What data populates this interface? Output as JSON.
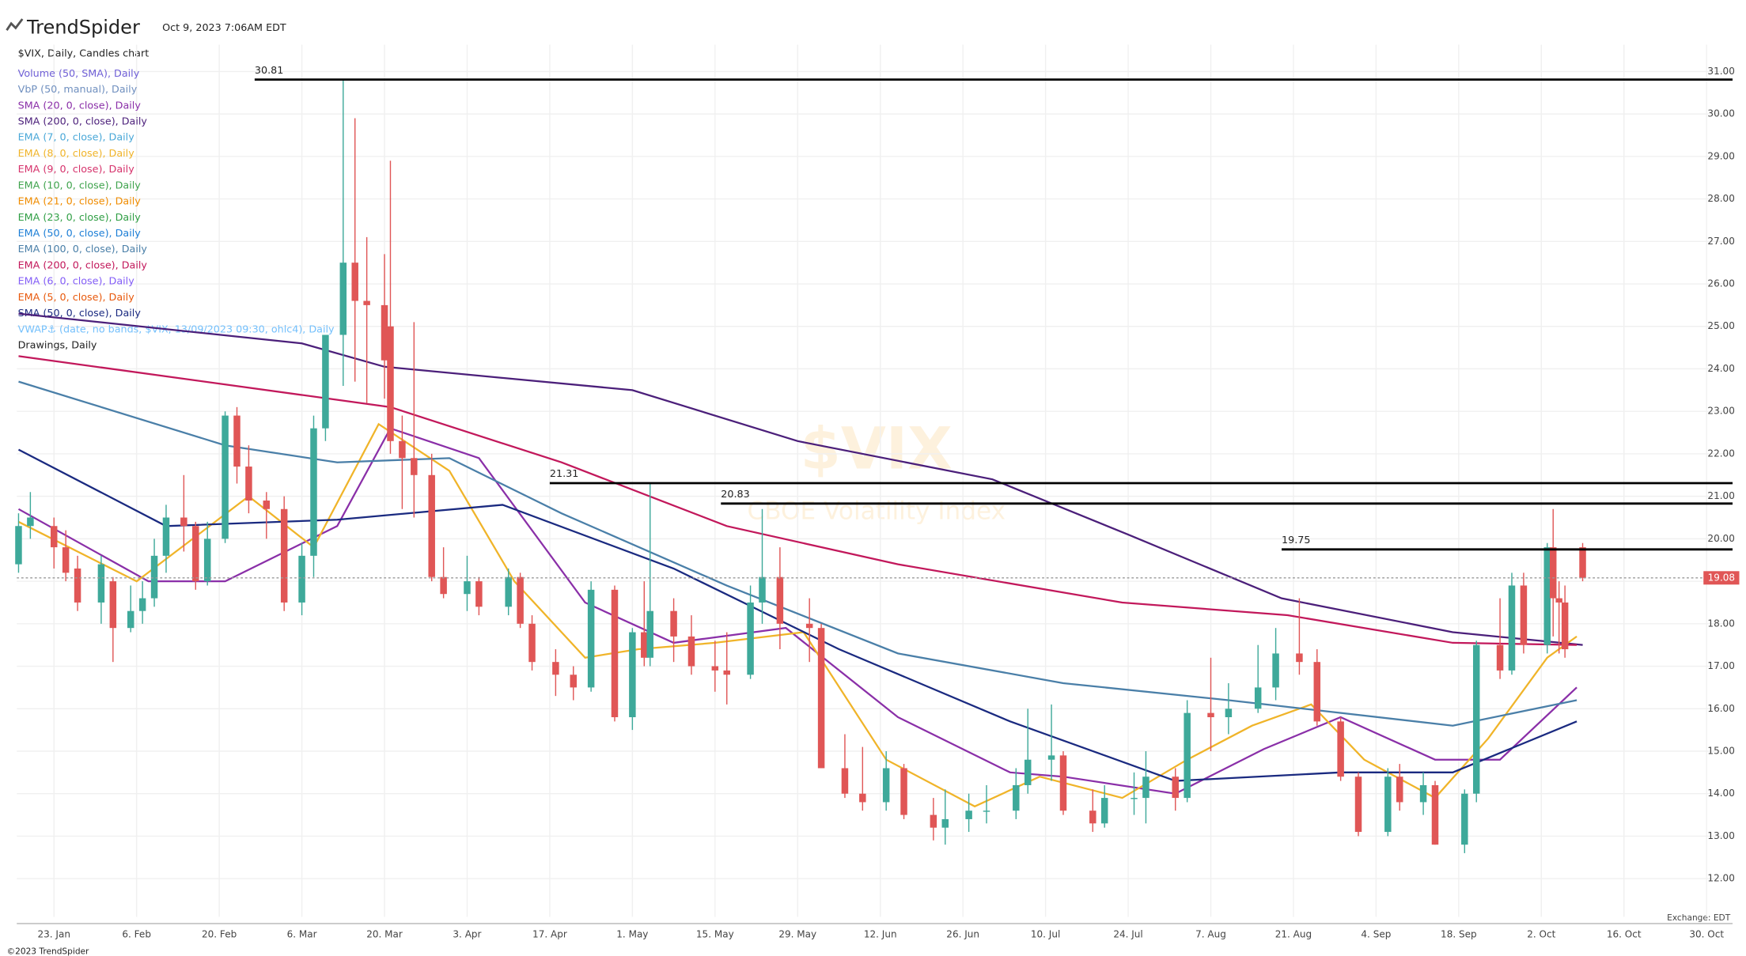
{
  "chart_data": {
    "type": "candlestick",
    "brand": "TrendSpider",
    "timestamp": "Oct 9, 2023 7:06AM EDT",
    "title": "$VIX, Daily, Candles chart",
    "watermark": "$VIX",
    "subtitle": "CBOE Volatility Index",
    "exchange_note": "Exchange: EDT",
    "copyright": "©2023 TrendSpider",
    "drawings_label": "Drawings, Daily",
    "up_color": "#3ea99a",
    "down_color": "#e05656",
    "xlim": [
      16.7,
      307.4
    ],
    "ylim": [
      11.1,
      31.63
    ],
    "xticks": [
      {
        "value": 23,
        "label": "23. Jan"
      },
      {
        "value": 37,
        "label": "6. Feb"
      },
      {
        "value": 51,
        "label": "20. Feb"
      },
      {
        "value": 65,
        "label": "6. Mar"
      },
      {
        "value": 79,
        "label": "20. Mar"
      },
      {
        "value": 93,
        "label": "3. Apr"
      },
      {
        "value": 107,
        "label": "17. Apr"
      },
      {
        "value": 121,
        "label": "1. May"
      },
      {
        "value": 135,
        "label": "15. May"
      },
      {
        "value": 149,
        "label": "29. May"
      },
      {
        "value": 163,
        "label": "12. Jun"
      },
      {
        "value": 177,
        "label": "26. Jun"
      },
      {
        "value": 191,
        "label": "10. Jul"
      },
      {
        "value": 205,
        "label": "24. Jul"
      },
      {
        "value": 219,
        "label": "7. Aug"
      },
      {
        "value": 233,
        "label": "21. Aug"
      },
      {
        "value": 247,
        "label": "4. Sep"
      },
      {
        "value": 261,
        "label": "18. Sep"
      },
      {
        "value": 275,
        "label": "2. Oct"
      },
      {
        "value": 289,
        "label": "16. Oct"
      },
      {
        "value": 303,
        "label": "30. Oct"
      }
    ],
    "yticks": [
      {
        "value": 12,
        "label": "12.00"
      },
      {
        "value": 13,
        "label": "13.00"
      },
      {
        "value": 14,
        "label": "14.00"
      },
      {
        "value": 15,
        "label": "15.00"
      },
      {
        "value": 16,
        "label": "16.00"
      },
      {
        "value": 17,
        "label": "17.00"
      },
      {
        "value": 18,
        "label": "18.00"
      },
      {
        "value": 19,
        "label": "19.00"
      },
      {
        "value": 20,
        "label": "20.00"
      },
      {
        "value": 21,
        "label": "21.00"
      },
      {
        "value": 22,
        "label": "22.00"
      },
      {
        "value": 23,
        "label": "23.00"
      },
      {
        "value": 24,
        "label": "24.00"
      },
      {
        "value": 25,
        "label": "25.00"
      },
      {
        "value": 26,
        "label": "26.00"
      },
      {
        "value": 27,
        "label": "27.00"
      },
      {
        "value": 28,
        "label": "28.00"
      },
      {
        "value": 29,
        "label": "29.00"
      },
      {
        "value": 30,
        "label": "30.00"
      },
      {
        "value": 31,
        "label": "31.00"
      }
    ],
    "grid": true,
    "x": [
      17,
      19,
      23,
      25,
      27,
      31,
      33,
      36,
      38,
      40,
      42,
      45,
      47,
      49,
      52,
      54,
      56,
      59,
      62,
      65,
      67,
      69,
      72,
      74,
      76,
      79,
      80,
      82,
      84,
      87,
      89,
      93,
      95,
      100,
      102,
      104,
      108,
      111,
      114,
      118,
      121,
      123,
      124,
      128,
      131,
      135,
      137,
      141,
      143,
      146,
      151,
      153,
      157,
      160,
      164,
      167,
      172,
      174,
      178,
      181,
      186,
      188,
      192,
      194,
      199,
      201,
      206,
      208,
      213,
      215,
      219,
      222,
      227,
      230,
      234,
      237,
      241,
      244,
      249,
      251,
      255,
      257,
      262,
      264,
      268,
      270,
      272,
      276,
      277,
      278,
      279,
      282
    ],
    "open": [
      19.4,
      20.3,
      20.3,
      19.8,
      19.3,
      18.5,
      19.0,
      17.9,
      18.3,
      18.6,
      19.6,
      20.5,
      20.3,
      19.0,
      20.0,
      22.9,
      21.7,
      20.9,
      20.7,
      18.5,
      19.6,
      22.6,
      24.8,
      26.5,
      25.6,
      25.5,
      25.0,
      22.3,
      21.9,
      21.5,
      19.1,
      18.7,
      19.0,
      18.4,
      19.1,
      18.0,
      17.1,
      16.8,
      16.5,
      18.8,
      15.8,
      17.8,
      17.2,
      18.3,
      17.7,
      17.0,
      16.9,
      16.8,
      18.5,
      19.1,
      18.0,
      17.9,
      14.6,
      14.0,
      13.8,
      14.6,
      13.5,
      13.2,
      13.4,
      13.6,
      13.6,
      14.2,
      14.8,
      14.9,
      13.6,
      13.3,
      13.9,
      13.9,
      14.4,
      13.9,
      15.9,
      15.8,
      16.0,
      16.5,
      17.3,
      17.1,
      15.7,
      14.4,
      13.1,
      14.4,
      13.8,
      14.2,
      12.8,
      14.0,
      17.5,
      16.9,
      18.9,
      17.5,
      19.8,
      18.6,
      18.5,
      19.8
    ],
    "high": [
      20.6,
      21.1,
      20.5,
      20.2,
      19.6,
      19.6,
      19.1,
      18.9,
      19.0,
      20.0,
      20.8,
      21.5,
      20.4,
      20.4,
      23.0,
      23.1,
      22.2,
      21.1,
      21.0,
      19.9,
      22.9,
      24.8,
      30.8,
      29.9,
      27.1,
      26.7,
      28.9,
      22.9,
      25.1,
      22.0,
      19.8,
      19.6,
      19.1,
      19.3,
      19.2,
      18.2,
      17.4,
      17.0,
      19.0,
      18.9,
      17.9,
      19.0,
      21.3,
      18.6,
      18.2,
      17.6,
      17.8,
      18.9,
      20.7,
      19.8,
      18.6,
      18.0,
      15.4,
      15.1,
      15.0,
      14.7,
      13.9,
      14.1,
      14.0,
      14.2,
      14.6,
      16.0,
      16.1,
      15.0,
      14.1,
      14.2,
      14.5,
      15.0,
      14.6,
      16.2,
      17.2,
      16.6,
      17.5,
      17.9,
      18.6,
      17.4,
      15.8,
      14.5,
      14.6,
      14.7,
      14.5,
      14.3,
      14.1,
      17.6,
      18.6,
      19.2,
      19.2,
      19.9,
      20.7,
      19.0,
      18.9,
      19.9
    ],
    "low": [
      19.2,
      20.0,
      19.3,
      19.0,
      18.3,
      18.0,
      17.1,
      17.8,
      18.0,
      18.4,
      19.2,
      19.7,
      18.8,
      18.9,
      19.9,
      21.3,
      20.6,
      20.0,
      18.3,
      18.2,
      19.1,
      22.3,
      23.6,
      23.7,
      23.2,
      23.3,
      22.0,
      20.7,
      20.5,
      19.0,
      18.6,
      18.3,
      18.2,
      18.2,
      17.9,
      16.9,
      16.3,
      16.2,
      16.4,
      15.7,
      15.5,
      17.0,
      17.0,
      17.1,
      16.8,
      16.4,
      16.1,
      16.7,
      18.0,
      17.4,
      17.1,
      14.6,
      13.9,
      13.6,
      13.6,
      13.4,
      12.9,
      12.8,
      13.1,
      13.3,
      13.4,
      14.0,
      14.3,
      13.5,
      13.1,
      13.2,
      13.5,
      13.3,
      13.6,
      13.8,
      15.0,
      15.4,
      15.9,
      16.2,
      16.8,
      15.6,
      14.3,
      13.0,
      13.0,
      13.6,
      13.5,
      12.8,
      12.6,
      13.8,
      16.7,
      16.8,
      17.3,
      17.3,
      17.7,
      17.3,
      17.2,
      19.0
    ],
    "close": [
      20.3,
      20.5,
      19.8,
      19.2,
      18.5,
      19.4,
      17.9,
      18.3,
      18.6,
      19.6,
      20.5,
      20.3,
      19.0,
      20.0,
      22.9,
      21.7,
      20.9,
      20.7,
      18.5,
      19.6,
      22.6,
      24.8,
      26.5,
      25.6,
      25.5,
      24.2,
      22.3,
      21.9,
      21.5,
      19.1,
      18.7,
      19.0,
      18.4,
      19.1,
      18.0,
      17.1,
      16.8,
      16.5,
      18.8,
      15.8,
      17.8,
      17.2,
      18.3,
      17.7,
      17.0,
      16.9,
      16.8,
      18.5,
      19.1,
      18.0,
      17.9,
      14.6,
      14.0,
      13.8,
      14.6,
      13.5,
      13.2,
      13.4,
      13.6,
      13.6,
      14.2,
      14.8,
      14.9,
      13.6,
      13.3,
      13.9,
      13.9,
      14.4,
      13.9,
      15.9,
      15.8,
      16.0,
      16.5,
      17.3,
      17.1,
      15.7,
      14.4,
      13.1,
      14.4,
      13.8,
      14.2,
      12.8,
      14.0,
      17.5,
      16.9,
      18.9,
      17.5,
      19.8,
      18.6,
      18.5,
      17.4,
      19.08
    ],
    "last_price": 19.08,
    "levels": [
      {
        "value": 30.81,
        "x": 57
      },
      {
        "value": 21.31,
        "x": 107
      },
      {
        "value": 20.83,
        "x": 136
      },
      {
        "value": 19.75,
        "x": 231
      }
    ],
    "indicators": [
      {
        "name": "Volume (50, SMA), Daily",
        "color": "#6f5fd6"
      },
      {
        "name": "VbP (50, manual), Daily",
        "color": "#6f8fbf"
      },
      {
        "name": "SMA (20, 0, close), Daily",
        "color": "#8a2fa8",
        "x": [
          17,
          39,
          52,
          71,
          80,
          95,
          113,
          128,
          147,
          166,
          185,
          194,
          213,
          228,
          241,
          257,
          268,
          281
        ],
        "values": [
          20.7,
          19.0,
          19.0,
          20.3,
          22.6,
          21.9,
          18.5,
          17.55,
          17.9,
          15.8,
          14.5,
          14.4,
          14.0,
          15.05,
          15.8,
          14.8,
          14.8,
          16.5
        ]
      },
      {
        "name": "SMA (200, 0, close), Daily",
        "color": "#4b1f7a",
        "x": [
          17,
          65,
          79,
          121,
          149,
          182,
          205,
          231,
          260,
          282
        ],
        "values": [
          25.3,
          24.6,
          24.05,
          23.5,
          22.3,
          21.4,
          20.1,
          18.6,
          17.8,
          17.5
        ]
      },
      {
        "name": "EMA (7, 0, close), Daily",
        "color": "#4aa8d8"
      },
      {
        "name": "EMA (8, 0, close), Daily",
        "color": "#f0b429",
        "x": [
          17,
          37,
          56,
          67,
          78,
          90,
          101,
          113,
          122,
          135,
          150,
          164,
          179,
          190,
          204,
          215,
          226,
          236,
          245,
          257,
          266,
          276,
          281
        ],
        "values": [
          20.4,
          19.0,
          21.0,
          19.8,
          22.7,
          21.6,
          19.0,
          17.2,
          17.4,
          17.55,
          17.8,
          14.8,
          13.7,
          14.4,
          13.9,
          14.8,
          15.6,
          16.1,
          14.8,
          13.9,
          15.3,
          17.2,
          17.7
        ]
      },
      {
        "name": "EMA (9, 0, close), Daily",
        "color": "#d6336c"
      },
      {
        "name": "EMA (10, 0, close), Daily",
        "color": "#3fa34d"
      },
      {
        "name": "EMA (21, 0, close), Daily",
        "color": "#f08c00"
      },
      {
        "name": "EMA (23, 0, close), Daily",
        "color": "#2f9e44"
      },
      {
        "name": "EMA (50, 0, close), Daily",
        "color": "#1c7ed6"
      },
      {
        "name": "EMA (100, 0, close), Daily",
        "color": "#4a7fa8",
        "x": [
          17,
          52,
          71,
          90,
          109,
          137,
          166,
          194,
          222,
          260,
          281
        ],
        "values": [
          23.7,
          22.2,
          21.8,
          21.9,
          20.6,
          18.9,
          17.3,
          16.6,
          16.2,
          15.6,
          16.2
        ]
      },
      {
        "name": "EMA (200, 0, close), Daily",
        "color": "#c2185b",
        "x": [
          17,
          80,
          109,
          137,
          166,
          204,
          232,
          260,
          281
        ],
        "values": [
          24.3,
          23.1,
          21.8,
          20.3,
          19.4,
          18.5,
          18.2,
          17.55,
          17.5
        ]
      },
      {
        "name": "EMA (6, 0, close), Daily",
        "color": "#845ef7"
      },
      {
        "name": "EMA (5, 0, close), Daily",
        "color": "#e8590c"
      },
      {
        "name": "SMA (50, 0, close), Daily",
        "color": "#1a2a80",
        "x": [
          17,
          42,
          71,
          99,
          128,
          156,
          185,
          213,
          241,
          260,
          281
        ],
        "values": [
          22.1,
          20.3,
          20.45,
          20.8,
          19.3,
          17.4,
          15.7,
          14.3,
          14.5,
          14.5,
          15.7
        ]
      },
      {
        "name": "VWAP⚓ (date, no bands, $VIX, 13/09/2023 09:30, ohlc4), Daily",
        "color": "#74c0fc"
      }
    ]
  }
}
